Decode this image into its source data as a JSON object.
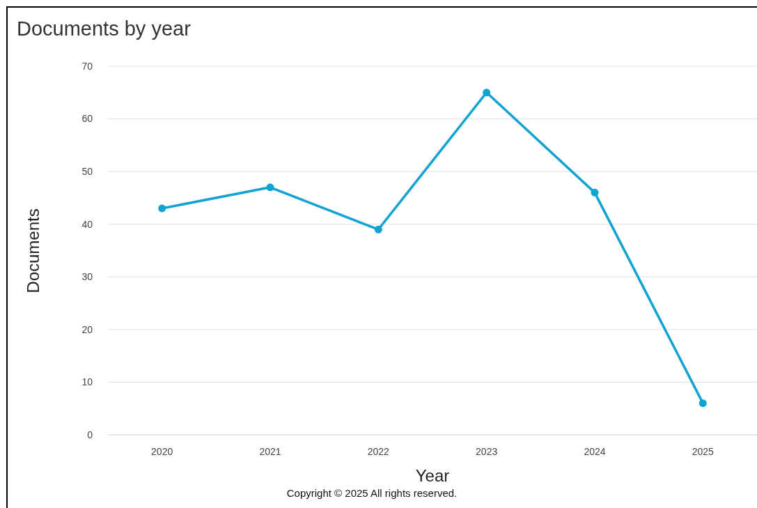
{
  "chart_data": {
    "type": "line",
    "title": "Documents by year",
    "xlabel": "Year",
    "ylabel": "Documents",
    "categories": [
      "2020",
      "2021",
      "2022",
      "2023",
      "2024",
      "2025"
    ],
    "series": [
      {
        "color": "#0ea3d2",
        "values": [
          43,
          47,
          39,
          65,
          46,
          6
        ]
      }
    ],
    "ylim": [
      0,
      70
    ],
    "yticks": [
      0,
      10,
      20,
      30,
      40,
      50,
      60,
      70
    ],
    "grid": "y",
    "marker": "circle",
    "line_style": "solid",
    "annotations": [
      "Copyright © 2025 All rights reserved."
    ]
  }
}
